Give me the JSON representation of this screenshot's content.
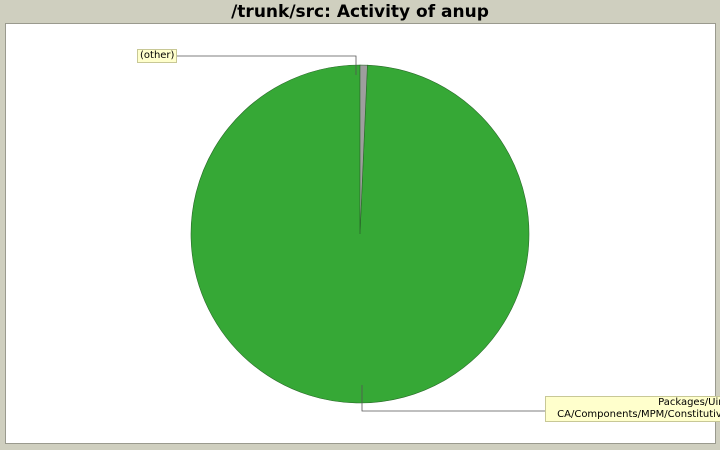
{
  "title": "/trunk/src: Activity of anup",
  "chart_data": {
    "type": "pie",
    "title": "/trunk/src: Activity of anup",
    "slices": [
      {
        "label": "Packages/Uim CA/Components/MPM/Constitutive",
        "value": 99.3,
        "color": "#36a836"
      },
      {
        "label": "(other)",
        "value": 0.7,
        "color": "#9e9e9e"
      }
    ]
  },
  "labels": {
    "other": "(other)",
    "main_line1": "Packages/Uim",
    "main_line2": "CA/Components/MPM/Constitutive"
  }
}
